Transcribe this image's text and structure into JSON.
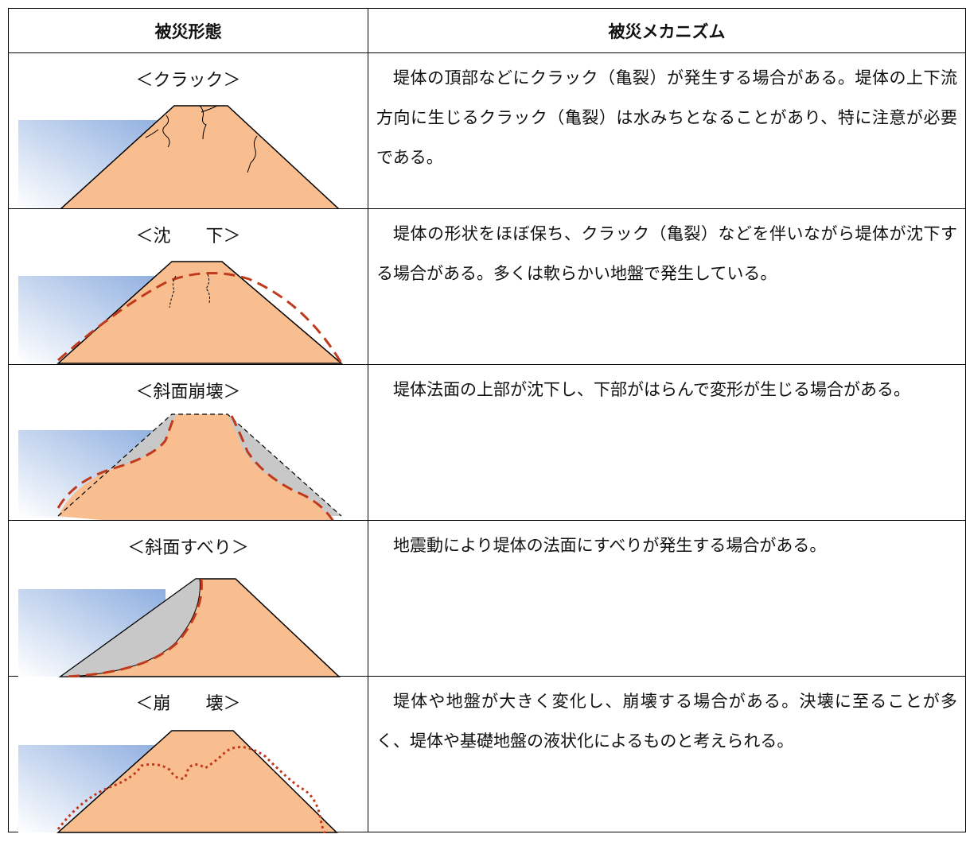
{
  "table": {
    "columns": [
      "被災形態",
      "被災メカニズム"
    ],
    "rows": [
      {
        "type": "＜クラック＞",
        "mechanism": "堤体の頂部などにクラック（亀裂）が発生する場合がある。堤体の上下流方向に生じるクラック（亀裂）は水みちとなることがあり、特に注意が必要である。"
      },
      {
        "type": "＜沈　　下＞",
        "mechanism": "堤体の形状をほぼ保ち、クラック（亀裂）などを伴いながら堤体が沈下する場合がある。多くは軟らかい地盤で発生している。"
      },
      {
        "type": "＜斜面崩壊＞",
        "mechanism": "堤体法面の上部が沈下し、下部がはらんで変形が生じる場合がある。"
      },
      {
        "type": "＜斜面すべり＞",
        "mechanism": "地震動により堤体の法面にすべりが発生する場合がある。"
      },
      {
        "type": "＜崩　　壊＞",
        "mechanism": "堤体や地盤が大きく変化し、崩壊する場合がある。決壊に至ることが多く、堤体や基礎地盤の液状化によるものと考えられる。"
      }
    ]
  }
}
